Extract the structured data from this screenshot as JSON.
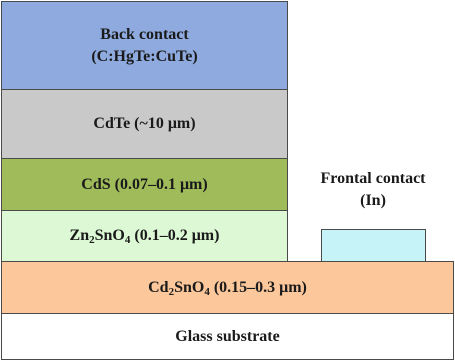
{
  "layers": {
    "back_contact": {
      "line1": "Back contact",
      "line2": "(C:HgTe:CuTe)",
      "color": "#8eaade"
    },
    "cdte": {
      "label": "CdTe (~10 μm)",
      "color": "#c9c9c9"
    },
    "cds": {
      "label": "CdS (0.07–0.1 μm)",
      "color": "#9fbb5a"
    },
    "zn2sno4": {
      "prefix": "Zn",
      "sub1": "2",
      "mid": "SnO",
      "sub2": "4",
      "suffix": " (0.1–0.2 μm)",
      "color": "#dcf8d4"
    },
    "cd2sno4": {
      "prefix": "Cd",
      "sub1": "2",
      "mid": "SnO",
      "sub2": "4",
      "suffix": " (0.15–0.3 μm)",
      "color": "#fbc79b"
    },
    "glass": {
      "label": "Glass substrate",
      "color": "#ffffff"
    }
  },
  "frontal_contact": {
    "line1": "Frontal contact",
    "line2": "(In)",
    "color": "#c6f3f8"
  }
}
